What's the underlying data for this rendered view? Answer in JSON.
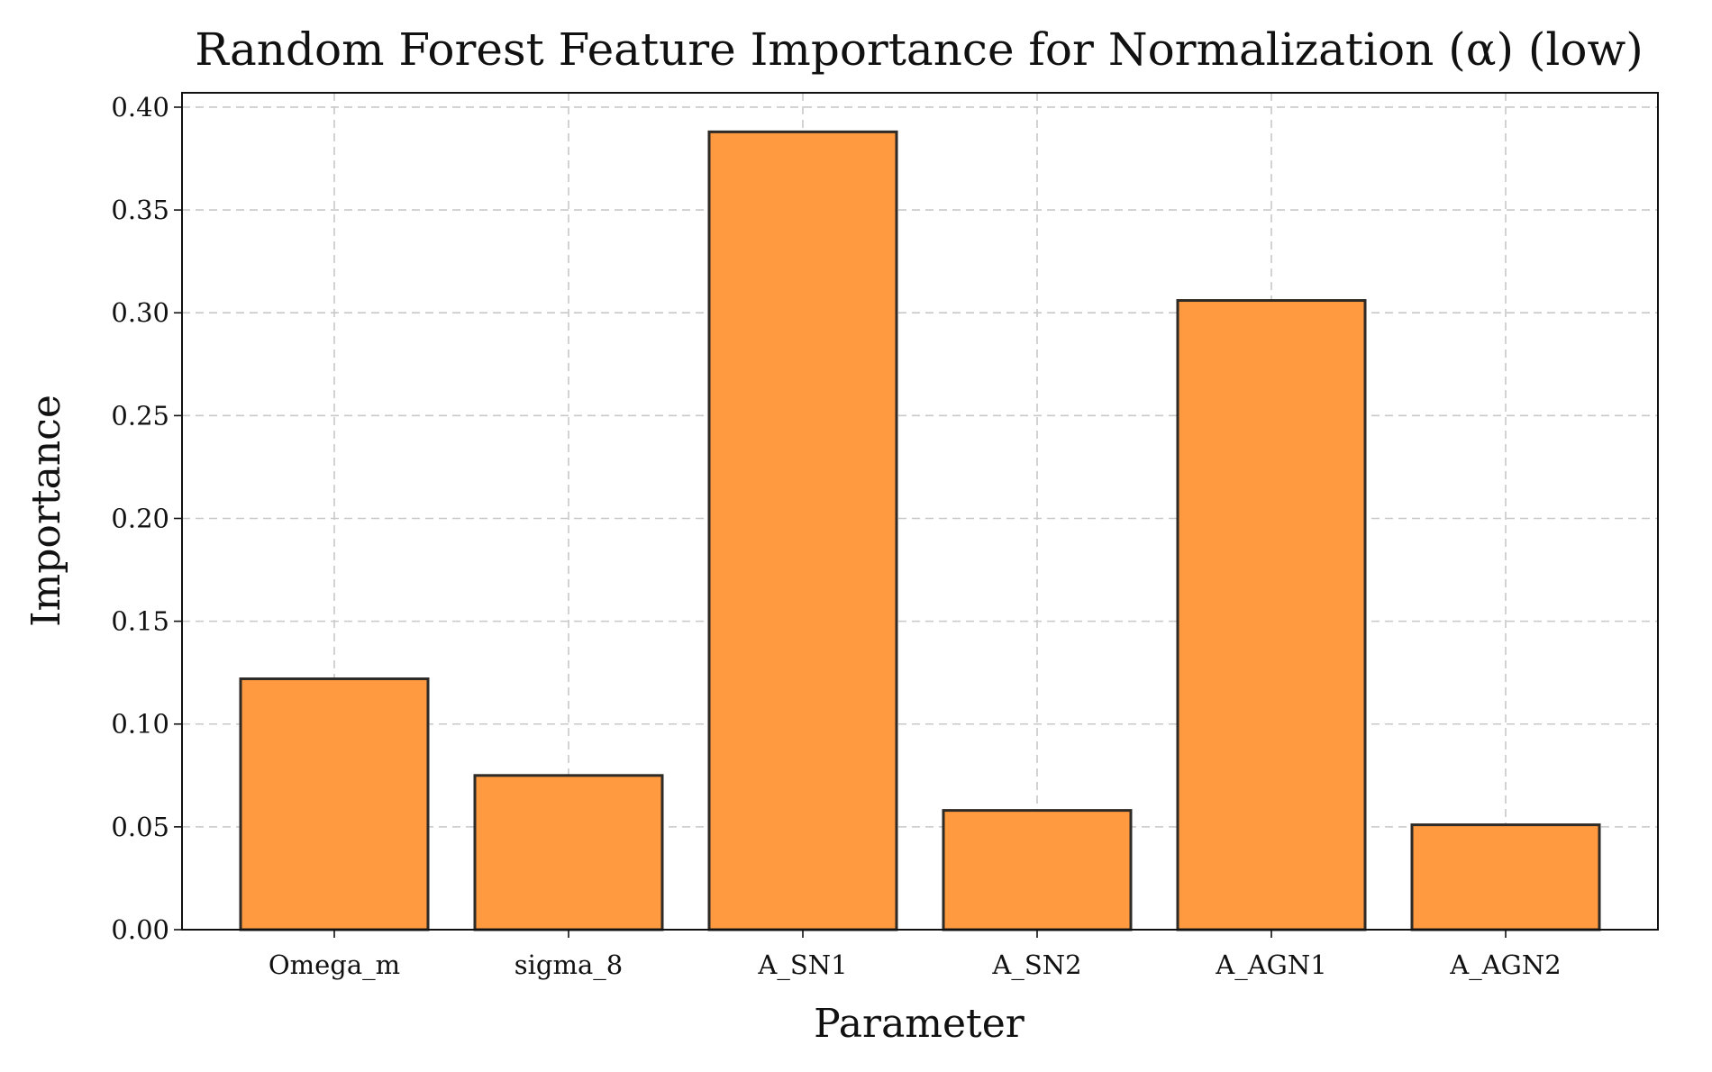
{
  "chart_data": {
    "type": "bar",
    "title": "Random Forest Feature Importance for Normalization (α) (low)",
    "xlabel": "Parameter",
    "ylabel": "Importance",
    "categories": [
      "Omega_m",
      "sigma_8",
      "A_SN1",
      "A_SN2",
      "A_AGN1",
      "A_AGN2"
    ],
    "series": [
      {
        "values": [
          0.122,
          0.075,
          0.388,
          0.058,
          0.306,
          0.051
        ]
      }
    ],
    "ylim": [
      0,
      0.407
    ],
    "yticks": [
      0.0,
      0.05,
      0.1,
      0.15,
      0.2,
      0.25,
      0.3,
      0.35,
      0.4
    ],
    "ytick_labels": [
      "0.00",
      "0.05",
      "0.10",
      "0.15",
      "0.20",
      "0.25",
      "0.30",
      "0.35",
      "0.40"
    ],
    "grid": true,
    "colors": {
      "bar_fill": "#ff9a40",
      "bar_edge": "#2e2a26",
      "grid": "#c8c8c8"
    }
  }
}
